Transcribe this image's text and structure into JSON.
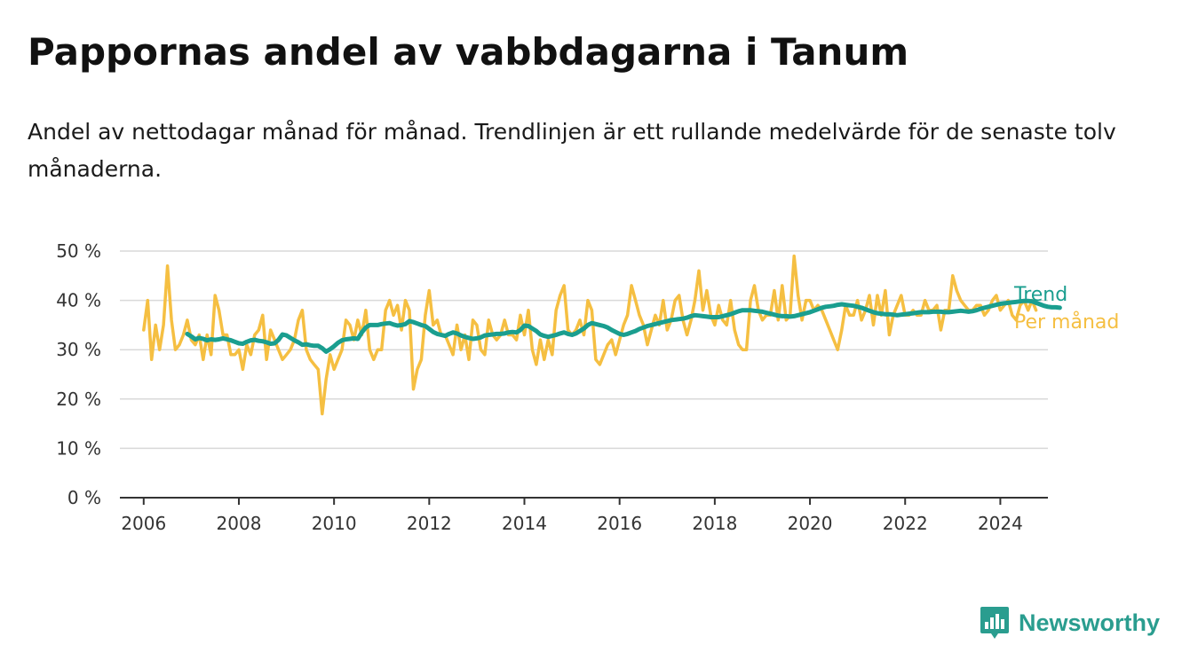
{
  "title": "Pappornas andel av vabbdagarna i Tanum",
  "subtitle": "Andel av nettodagar månad för månad. Trendlinjen är ett rullande medelvärde för de senaste tolv månaderna.",
  "brand": {
    "name": "Newsworthy",
    "color": "#2a9d8f"
  },
  "chart_data": {
    "type": "line",
    "title": "Pappornas andel av vabbdagarna i Tanum",
    "subtitle": "Andel av nettodagar månad för månad. Trendlinjen är ett rullande medelvärde för de senaste tolv månaderna.",
    "x_ticks": [
      "2006",
      "2008",
      "2010",
      "2012",
      "2014",
      "2016",
      "2018",
      "2020",
      "2022",
      "2024"
    ],
    "y_ticks": [
      "0 %",
      "10 %",
      "20 %",
      "30 %",
      "40 %",
      "50 %"
    ],
    "ylim": [
      0,
      50
    ],
    "xlim": [
      "2005-07",
      "2025-01"
    ],
    "grid": true,
    "legend_position": "right-end-of-lines",
    "series": [
      {
        "name": "Per månad",
        "color": "#f5bf42",
        "start": "2006-01",
        "frequency": "monthly",
        "values": [
          34,
          40,
          28,
          35,
          30,
          35,
          47,
          36,
          30,
          31,
          33,
          36,
          32,
          31,
          33,
          28,
          33,
          29,
          41,
          38,
          33,
          33,
          29,
          29,
          30,
          26,
          31,
          29,
          33,
          34,
          37,
          28,
          34,
          32,
          30,
          28,
          29,
          30,
          32,
          36,
          38,
          30,
          28,
          27,
          26,
          17,
          24,
          29,
          26,
          28,
          30,
          36,
          35,
          32,
          36,
          33,
          38,
          30,
          28,
          30,
          30,
          38,
          40,
          37,
          39,
          34,
          40,
          38,
          22,
          26,
          28,
          37,
          42,
          35,
          36,
          33,
          33,
          31,
          29,
          35,
          30,
          33,
          28,
          36,
          35,
          30,
          29,
          36,
          33,
          32,
          33,
          36,
          33,
          33,
          32,
          37,
          33,
          38,
          30,
          27,
          32,
          28,
          32,
          29,
          38,
          41,
          43,
          34,
          33,
          34,
          36,
          33,
          40,
          38,
          28,
          27,
          29,
          31,
          32,
          29,
          32,
          35,
          37,
          43,
          40,
          37,
          35,
          31,
          34,
          37,
          35,
          40,
          34,
          36,
          40,
          41,
          36,
          33,
          36,
          40,
          46,
          38,
          42,
          37,
          35,
          39,
          36,
          35,
          40,
          34,
          31,
          30,
          30,
          40,
          43,
          38,
          36,
          37,
          37,
          42,
          36,
          43,
          36,
          37,
          49,
          41,
          36,
          40,
          40,
          38,
          39,
          38,
          36,
          34,
          32,
          30,
          34,
          39,
          37,
          37,
          40,
          36,
          38,
          41,
          35,
          41,
          37,
          42,
          33,
          37,
          39,
          41,
          37,
          37,
          38,
          37,
          37,
          40,
          38,
          38,
          39,
          34,
          38,
          38,
          45,
          42,
          40,
          39,
          38,
          38,
          39,
          39,
          37,
          38,
          40,
          41,
          38,
          39,
          40,
          37,
          36,
          39,
          40,
          38,
          40,
          38
        ]
      },
      {
        "name": "Trend",
        "color": "#1a9e8f",
        "start": "2006-12",
        "frequency": "monthly",
        "values": [
          33.2,
          32.7,
          32.1,
          32.4,
          32.2,
          31.9,
          32.1,
          32.0,
          32.1,
          32.3,
          32.1,
          31.9,
          31.6,
          31.3,
          31.2,
          31.6,
          31.9,
          32.0,
          31.8,
          31.7,
          31.5,
          31.2,
          31.3,
          32.0,
          33.1,
          32.9,
          32.4,
          31.9,
          31.5,
          31.0,
          31.1,
          30.9,
          30.8,
          30.8,
          30.3,
          29.6,
          30.1,
          30.7,
          31.4,
          31.9,
          32.1,
          32.2,
          32.3,
          32.2,
          33.5,
          34.5,
          35.0,
          35.0,
          35.0,
          35.2,
          35.3,
          35.4,
          35.1,
          34.9,
          35.0,
          35.2,
          35.8,
          35.6,
          35.3,
          35.0,
          34.8,
          34.2,
          33.6,
          33.2,
          33.0,
          32.8,
          33.2,
          33.5,
          33.3,
          32.9,
          32.6,
          32.4,
          32.2,
          32.3,
          32.5,
          32.9,
          33.0,
          33.1,
          33.2,
          33.2,
          33.3,
          33.5,
          33.6,
          33.5,
          34.0,
          34.9,
          34.8,
          34.3,
          33.8,
          33.1,
          32.8,
          32.6,
          32.8,
          33.0,
          33.3,
          33.5,
          33.2,
          33.0,
          33.3,
          33.8,
          34.3,
          35.0,
          35.4,
          35.2,
          35.0,
          34.8,
          34.5,
          34.0,
          33.6,
          33.2,
          33.0,
          33.2,
          33.5,
          33.8,
          34.2,
          34.5,
          34.8,
          35.0,
          35.2,
          35.4,
          35.6,
          35.8,
          36.0,
          36.1,
          36.2,
          36.3,
          36.5,
          36.8,
          37.0,
          36.9,
          36.8,
          36.7,
          36.6,
          36.6,
          36.6,
          36.8,
          37.0,
          37.2,
          37.5,
          37.8,
          38.0,
          38.0,
          38.0,
          37.9,
          37.8,
          37.7,
          37.5,
          37.3,
          37.1,
          36.9,
          36.8,
          36.8,
          36.7,
          36.8,
          37.0,
          37.2,
          37.4,
          37.6,
          37.9,
          38.2,
          38.5,
          38.7,
          38.8,
          38.9,
          39.1,
          39.2,
          39.1,
          39.0,
          38.9,
          38.7,
          38.5,
          38.2,
          37.9,
          37.6,
          37.4,
          37.3,
          37.2,
          37.2,
          37.1,
          37.0,
          37.1,
          37.2,
          37.3,
          37.4,
          37.5,
          37.6,
          37.6,
          37.6,
          37.7,
          37.7,
          37.7,
          37.6,
          37.6,
          37.7,
          37.8,
          37.9,
          37.8,
          37.7,
          37.8,
          38.0,
          38.3,
          38.5,
          38.7,
          38.9,
          39.1,
          39.3,
          39.4,
          39.5,
          39.6,
          39.7,
          39.8,
          39.9,
          39.9,
          39.8,
          39.5,
          39.2,
          38.9,
          38.7,
          38.6,
          38.6,
          38.5
        ]
      }
    ]
  }
}
